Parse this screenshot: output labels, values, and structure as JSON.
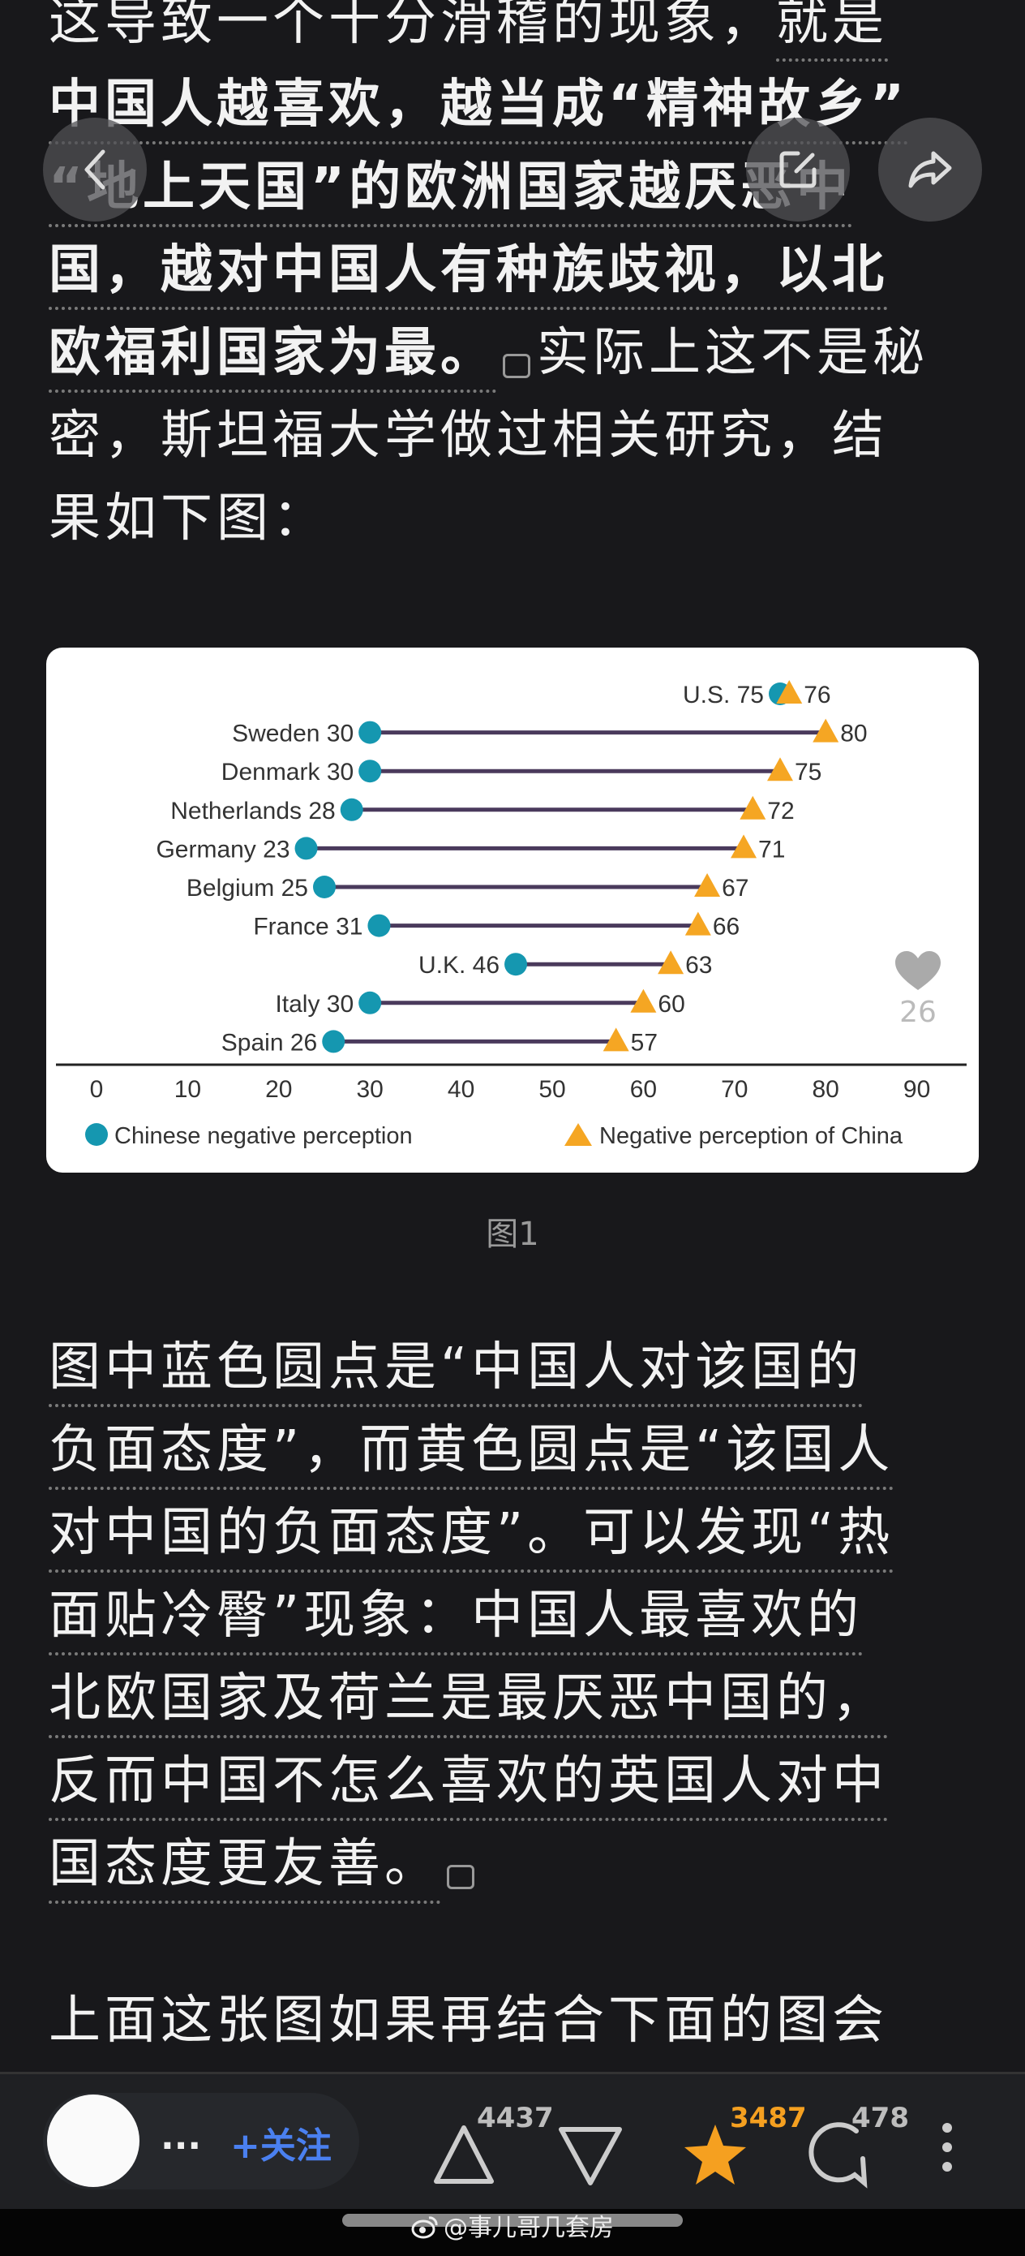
{
  "article": {
    "para1": [
      {
        "n": "这导致一个十分滑稽的现象，",
        "u": "就是"
      },
      {
        "b": "中国人越喜欢，越当成“精神故乡”"
      },
      {
        "b": "“地上天国”的欧洲国家越厌恶中"
      },
      {
        "b": "国，越对中国人有种族歧视，以北"
      },
      {
        "b": "欧福利国家为最。",
        "n": "实际上这不是秘"
      },
      {
        "n": "密，斯坦福大学做过相关研究，结"
      },
      {
        "n": "果如下图："
      }
    ],
    "caption": "图1",
    "para2": [
      "图中蓝色圆点是“中国人对该国的",
      "负面态度”，而黄色圆点是“该国人",
      "对中国的负面态度”。可以发现“热",
      "面贴冷臀”现象：中国人最喜欢的",
      "北欧国家及荷兰是最厌恶中国的，",
      "反而中国不怎么喜欢的英国人对中",
      "国态度更友善。"
    ],
    "para3": "上面这张图如果再结合下面的图会"
  },
  "overlay": {
    "back_icon": "chevron-left-icon",
    "edit_icon": "edit-icon",
    "share_icon": "share-icon"
  },
  "image_likes": "26",
  "chart_data": {
    "type": "dumbbell",
    "categories": [
      "U.S.",
      "Sweden",
      "Denmark",
      "Netherlands",
      "Germany",
      "Belgium",
      "France",
      "U.K.",
      "Italy",
      "Spain"
    ],
    "series": [
      {
        "name": "Chinese negative perception",
        "marker": "circle",
        "color": "#1597b0",
        "values": [
          75,
          30,
          30,
          28,
          23,
          25,
          31,
          46,
          30,
          26
        ]
      },
      {
        "name": "Negative perception of China",
        "marker": "triangle",
        "color": "#f5a623",
        "values": [
          76,
          80,
          75,
          72,
          71,
          67,
          66,
          63,
          60,
          57
        ]
      }
    ],
    "xlim": [
      0,
      90
    ],
    "xticks": [
      "0",
      "10",
      "20",
      "30",
      "40",
      "50",
      "60",
      "70",
      "80",
      "90"
    ],
    "connector_color": "#4a3a5c",
    "legend": "bottom",
    "grid": false
  },
  "bottom_bar": {
    "more_dots": "...",
    "follow_label": "+关注",
    "upvote_count": "4437",
    "favorite_count": "3487",
    "comment_count": "478",
    "accent": "#4a80f0",
    "fav_color": "#f5a020"
  },
  "watermark": "@事儿哥几套房"
}
